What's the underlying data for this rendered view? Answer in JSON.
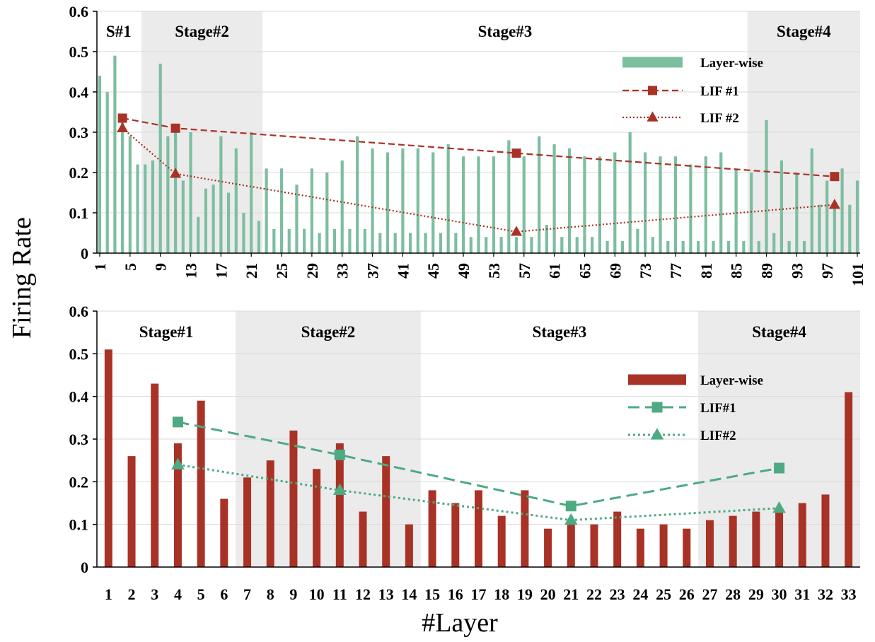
{
  "figure": {
    "ylabel": "Firing Rate",
    "xlabel": "#Layer"
  },
  "chart_data": [
    {
      "type": "bar",
      "panel": "top",
      "ylim": [
        0,
        0.6
      ],
      "yticks": [
        "0",
        "0.1",
        "0.2",
        "0.3",
        "0.4",
        "0.5",
        "0.6"
      ],
      "x_range": [
        1,
        101
      ],
      "xticks": [
        "1",
        "5",
        "9",
        "13",
        "17",
        "21",
        "25",
        "29",
        "33",
        "37",
        "41",
        "45",
        "49",
        "53",
        "57",
        "61",
        "65",
        "69",
        "73",
        "77",
        "81",
        "85",
        "89",
        "93",
        "97",
        "101"
      ],
      "grid": true,
      "legend_position": "top-right",
      "stages": [
        {
          "label": "S#1",
          "from": 1,
          "to": 7,
          "shaded": false
        },
        {
          "label": "Stage#2",
          "from": 7,
          "to": 23,
          "shaded": true
        },
        {
          "label": "Stage#3",
          "from": 23,
          "to": 87,
          "shaded": false
        },
        {
          "label": "Stage#4",
          "from": 87,
          "to": 101,
          "shaded": true
        }
      ],
      "bar_series": {
        "name": "Layer-wise",
        "color": "#7dbea0",
        "values": [
          0.44,
          0.4,
          0.49,
          0.33,
          0.29,
          0.22,
          0.22,
          0.23,
          0.47,
          0.29,
          0.3,
          0.18,
          0.3,
          0.09,
          0.16,
          0.17,
          0.29,
          0.15,
          0.26,
          0.1,
          0.3,
          0.08,
          0.21,
          0.06,
          0.21,
          0.06,
          0.17,
          0.06,
          0.21,
          0.05,
          0.2,
          0.06,
          0.23,
          0.06,
          0.29,
          0.06,
          0.26,
          0.05,
          0.25,
          0.05,
          0.26,
          0.05,
          0.26,
          0.05,
          0.25,
          0.05,
          0.27,
          0.05,
          0.24,
          0.04,
          0.24,
          0.04,
          0.24,
          0.04,
          0.28,
          0.04,
          0.24,
          0.04,
          0.29,
          0.07,
          0.27,
          0.04,
          0.26,
          0.04,
          0.24,
          0.04,
          0.24,
          0.03,
          0.25,
          0.03,
          0.3,
          0.06,
          0.25,
          0.04,
          0.24,
          0.03,
          0.24,
          0.03,
          0.22,
          0.03,
          0.24,
          0.03,
          0.25,
          0.03,
          0.21,
          0.03,
          0.2,
          0.03,
          0.33,
          0.05,
          0.23,
          0.03,
          0.2,
          0.03,
          0.26,
          0.12,
          0.18,
          0.12,
          0.21,
          0.12,
          0.18
        ]
      },
      "line_series": [
        {
          "name": "LIF #1",
          "color": "#a93226",
          "style": "dashed",
          "marker": "square",
          "x": [
            4,
            11,
            56,
            98
          ],
          "values": [
            0.335,
            0.31,
            0.248,
            0.19
          ]
        },
        {
          "name": "LIF #2",
          "color": "#a93226",
          "style": "dotted",
          "marker": "triangle",
          "x": [
            4,
            11,
            56,
            98
          ],
          "values": [
            0.31,
            0.197,
            0.053,
            0.12
          ]
        }
      ]
    },
    {
      "type": "bar",
      "panel": "bottom",
      "ylim": [
        0,
        0.6
      ],
      "yticks": [
        "0",
        "0.1",
        "0.2",
        "0.3",
        "0.4",
        "0.5",
        "0.6"
      ],
      "categories": [
        "1",
        "2",
        "3",
        "4",
        "5",
        "6",
        "7",
        "8",
        "9",
        "10",
        "11",
        "12",
        "13",
        "14",
        "15",
        "16",
        "17",
        "18",
        "19",
        "20",
        "21",
        "22",
        "23",
        "24",
        "25",
        "26",
        "27",
        "28",
        "29",
        "30",
        "31",
        "32",
        "33"
      ],
      "grid": true,
      "legend_position": "right",
      "stages": [
        {
          "label": "Stage#1",
          "from": 1,
          "to": 6,
          "shaded": false
        },
        {
          "label": "Stage#2",
          "from": 7,
          "to": 14,
          "shaded": true
        },
        {
          "label": "Stage#3",
          "from": 15,
          "to": 26,
          "shaded": false
        },
        {
          "label": "Stage#4",
          "from": 27,
          "to": 33,
          "shaded": true
        }
      ],
      "bar_series": {
        "name": "Layer-wise",
        "color": "#a93226",
        "values": [
          0.51,
          0.26,
          0.43,
          0.29,
          0.39,
          0.16,
          0.21,
          0.25,
          0.32,
          0.23,
          0.29,
          0.13,
          0.26,
          0.1,
          0.18,
          0.15,
          0.18,
          0.12,
          0.18,
          0.09,
          0.1,
          0.1,
          0.13,
          0.09,
          0.1,
          0.09,
          0.11,
          0.12,
          0.13,
          0.13,
          0.15,
          0.17,
          0.41
        ]
      },
      "line_series": [
        {
          "name": "LIF#1",
          "color": "#4daa83",
          "style": "dashed",
          "marker": "square",
          "x": [
            4,
            11,
            21,
            30
          ],
          "values": [
            0.34,
            0.263,
            0.143,
            0.232
          ]
        },
        {
          "name": "LIF#2",
          "color": "#4daa83",
          "style": "dotted",
          "marker": "triangle",
          "x": [
            4,
            11,
            21,
            30
          ],
          "values": [
            0.24,
            0.18,
            0.11,
            0.138
          ]
        }
      ]
    }
  ]
}
